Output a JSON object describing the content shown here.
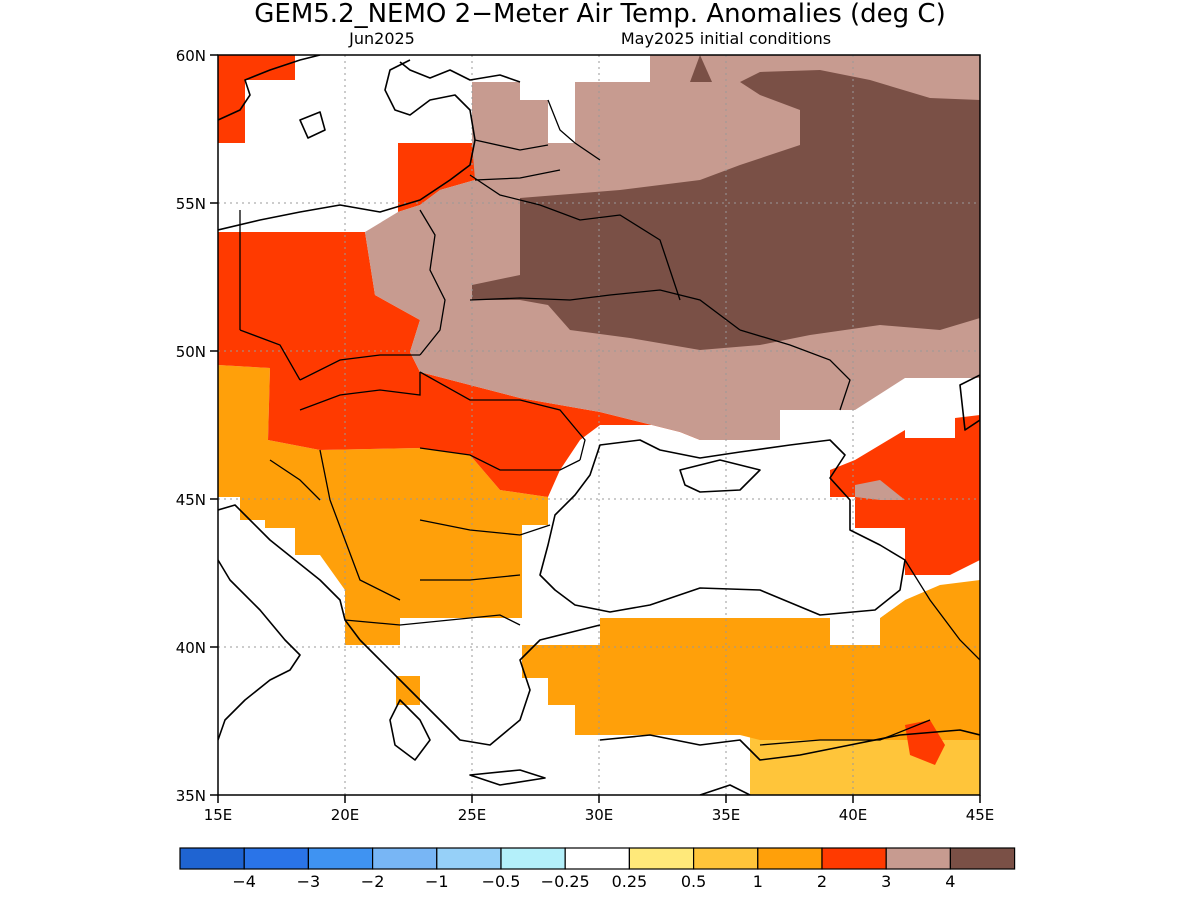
{
  "title": "GEM5.2_NEMO 2−Meter Air Temp. Anomalies (deg C)",
  "subtitle_left": "Jun2025",
  "subtitle_right": "May2025 initial conditions",
  "lat_ticks": [
    "60N",
    "55N",
    "50N",
    "45N",
    "40N",
    "35N"
  ],
  "lon_ticks": [
    "15E",
    "20E",
    "25E",
    "30E",
    "35E",
    "40E",
    "45E"
  ],
  "colorbar": {
    "colors": [
      "#1f64d2",
      "#2a74e8",
      "#3f93f2",
      "#78b6f5",
      "#96d0f8",
      "#b4f0fa",
      "#ffffff",
      "#ffe97a",
      "#ffc53a",
      "#ffa00a",
      "#ff3a00",
      "#c79b90",
      "#7a5046"
    ],
    "labels": [
      "−4",
      "−3",
      "−2",
      "−1",
      "−0.5",
      "−0.25",
      "0.25",
      "0.5",
      "1",
      "2",
      "3",
      "4"
    ]
  },
  "colors": {
    "water_white": "#ffffff",
    "anom_05_1": "#ffc53a",
    "anom_1_2": "#ffa00a",
    "anom_2_3": "#ff3a00",
    "anom_3_4": "#c79b90",
    "anom_gt4": "#7a5046"
  }
}
